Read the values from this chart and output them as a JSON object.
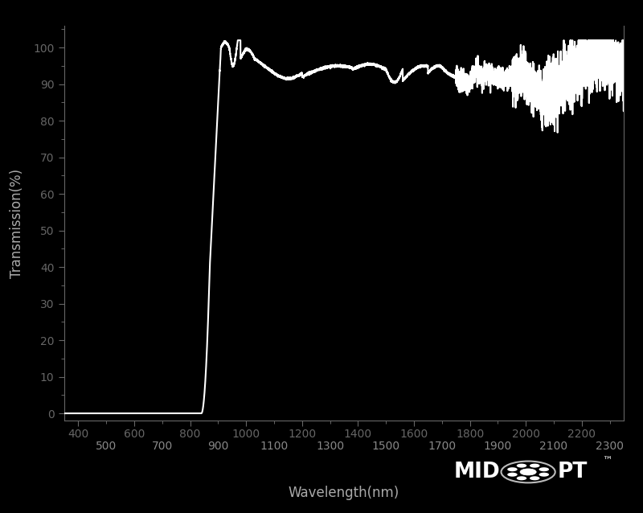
{
  "background_color": "#000000",
  "plot_bg_color": "#000000",
  "line_color": "#ffffff",
  "axis_color": "#666666",
  "tick_label_color": "#888888",
  "xlabel": "Wavelength(nm)",
  "ylabel": "Transmission(%)",
  "xlim": [
    350,
    2350
  ],
  "ylim": [
    -2,
    106
  ],
  "yticks": [
    0,
    10,
    20,
    30,
    40,
    50,
    60,
    70,
    80,
    90,
    100
  ],
  "xticks_top": [
    400,
    600,
    800,
    1000,
    1200,
    1400,
    1600,
    1800,
    2000,
    2200
  ],
  "xticks_bottom": [
    500,
    700,
    900,
    1100,
    1300,
    1500,
    1700,
    1900,
    2100,
    2300
  ],
  "line_width": 1.5,
  "font_color": "#aaaaaa",
  "label_fontsize": 12,
  "tick_fontsize": 10,
  "figsize": [
    8.0,
    6.38
  ],
  "dpi": 100
}
